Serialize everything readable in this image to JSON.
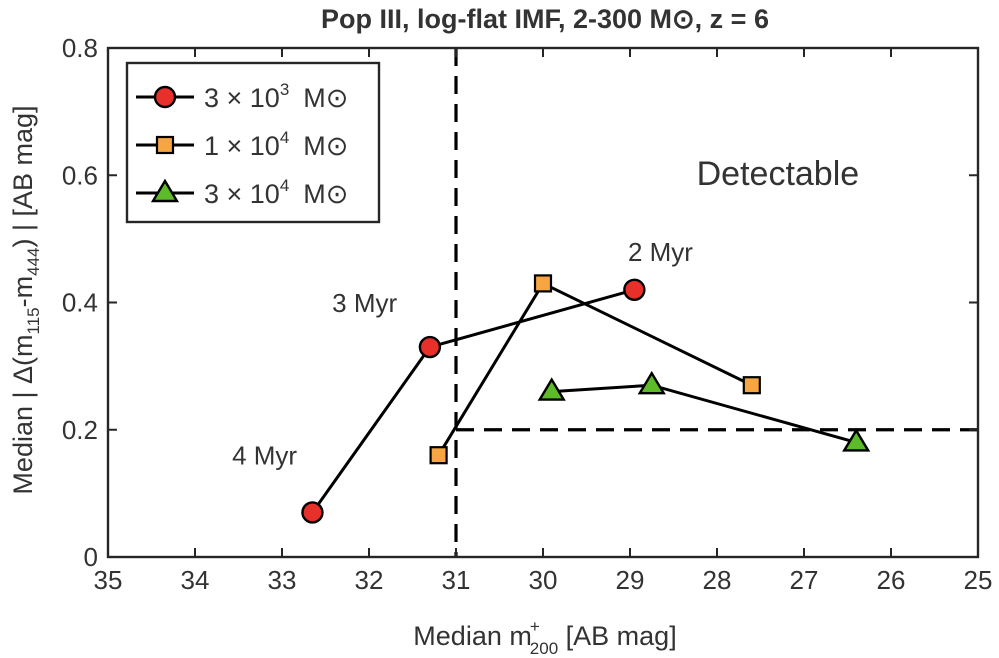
{
  "chart_data": {
    "type": "line",
    "title": "Pop III, log-flat IMF, 2-300 M⊙, z = 6",
    "xlabel": {
      "prefix": "Median m",
      "sup": "+",
      "sub": "200",
      "suffix": " [AB mag]"
    },
    "ylabel": {
      "prefix": "Median | Δ(m",
      "sub1": "115",
      "mid": "-m",
      "sub2": "444",
      "suffix": ") | [AB mag]"
    },
    "xlim": [
      35,
      25
    ],
    "ylim": [
      0,
      0.8
    ],
    "xticks": [
      35,
      34,
      33,
      32,
      31,
      30,
      29,
      28,
      27,
      26,
      25
    ],
    "yticks": [
      0,
      0.2,
      0.4,
      0.6,
      0.8
    ],
    "ytick_labels": [
      "0",
      "0.2",
      "0.4",
      "0.6",
      "0.8"
    ],
    "grid": false,
    "legend_position": "top-left",
    "series": [
      {
        "name": "3 × 10",
        "exp": "3",
        "unit": "M⊙",
        "marker": "circle",
        "color": "#e8302a",
        "x": [
          32.65,
          31.3,
          28.95
        ],
        "y": [
          0.07,
          0.33,
          0.42
        ]
      },
      {
        "name": "1 × 10",
        "exp": "4",
        "unit": "M⊙",
        "marker": "square",
        "color": "#f7a541",
        "x": [
          31.2,
          30.0,
          27.6
        ],
        "y": [
          0.16,
          0.43,
          0.27
        ]
      },
      {
        "name": "3 × 10",
        "exp": "4",
        "unit": "M⊙",
        "marker": "triangle",
        "color": "#5dbb29",
        "x": [
          29.9,
          28.75,
          26.4
        ],
        "y": [
          0.26,
          0.27,
          0.18
        ]
      }
    ],
    "annotations": [
      {
        "text": "4 Myr",
        "x": 33.2,
        "y": 0.145
      },
      {
        "text": "3 Myr",
        "x": 32.05,
        "y": 0.385
      },
      {
        "text": "2 Myr",
        "x": 28.65,
        "y": 0.465
      },
      {
        "text": "Detectable",
        "x": 27.3,
        "y": 0.585
      }
    ],
    "threshold_lines": {
      "x": 31.0,
      "y": 0.2
    }
  }
}
